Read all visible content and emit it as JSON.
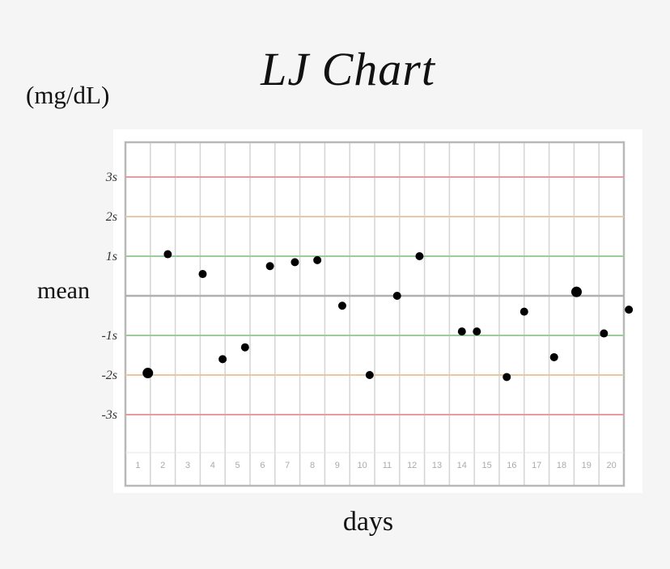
{
  "title": "LJ Chart",
  "y_unit": "(mg/dL)",
  "x_axis_label": "days",
  "mean_label": "mean",
  "colors": {
    "grid": "#d4d4d4",
    "border": "#b8b8b8",
    "sd1": "#9ccc9c",
    "sd2": "#e9c9a0",
    "sd3": "#e99aa0",
    "mean": "#b0b0b0",
    "point": "#000000"
  },
  "chart_data": {
    "type": "scatter",
    "title": "LJ Chart",
    "xlabel": "days",
    "ylabel": "(mg/dL)",
    "grid": true,
    "x_categories": [
      "1",
      "2",
      "3",
      "4",
      "5",
      "6",
      "7",
      "8",
      "9",
      "10",
      "11",
      "12",
      "13",
      "14",
      "15",
      "16",
      "17",
      "18",
      "19",
      "20"
    ],
    "y_ticks": [
      {
        "label": "3s",
        "value": 3
      },
      {
        "label": "2s",
        "value": 2
      },
      {
        "label": "1s",
        "value": 1
      },
      {
        "label": "-1s",
        "value": -1
      },
      {
        "label": "-2s",
        "value": -2
      },
      {
        "label": "-3s",
        "value": -3
      }
    ],
    "ylim": [
      -4.3,
      4.0
    ],
    "xlim": [
      0.6,
      20.6
    ],
    "points": [
      {
        "x": 1.5,
        "y": -1.95
      },
      {
        "x": 2.3,
        "y": 1.05
      },
      {
        "x": 3.7,
        "y": 0.55
      },
      {
        "x": 4.5,
        "y": -1.6
      },
      {
        "x": 5.4,
        "y": -1.3
      },
      {
        "x": 6.4,
        "y": 0.75
      },
      {
        "x": 7.4,
        "y": 0.85
      },
      {
        "x": 8.3,
        "y": 0.9
      },
      {
        "x": 9.3,
        "y": -0.25
      },
      {
        "x": 10.4,
        "y": -2.0
      },
      {
        "x": 11.5,
        "y": 0.0
      },
      {
        "x": 12.4,
        "y": 1.0
      },
      {
        "x": 14.1,
        "y": -0.9
      },
      {
        "x": 14.7,
        "y": -0.9
      },
      {
        "x": 15.9,
        "y": -2.05
      },
      {
        "x": 16.6,
        "y": -0.4
      },
      {
        "x": 17.8,
        "y": -1.55
      },
      {
        "x": 18.7,
        "y": 0.1
      },
      {
        "x": 19.8,
        "y": -0.95
      },
      {
        "x": 20.8,
        "y": -0.35
      }
    ]
  }
}
